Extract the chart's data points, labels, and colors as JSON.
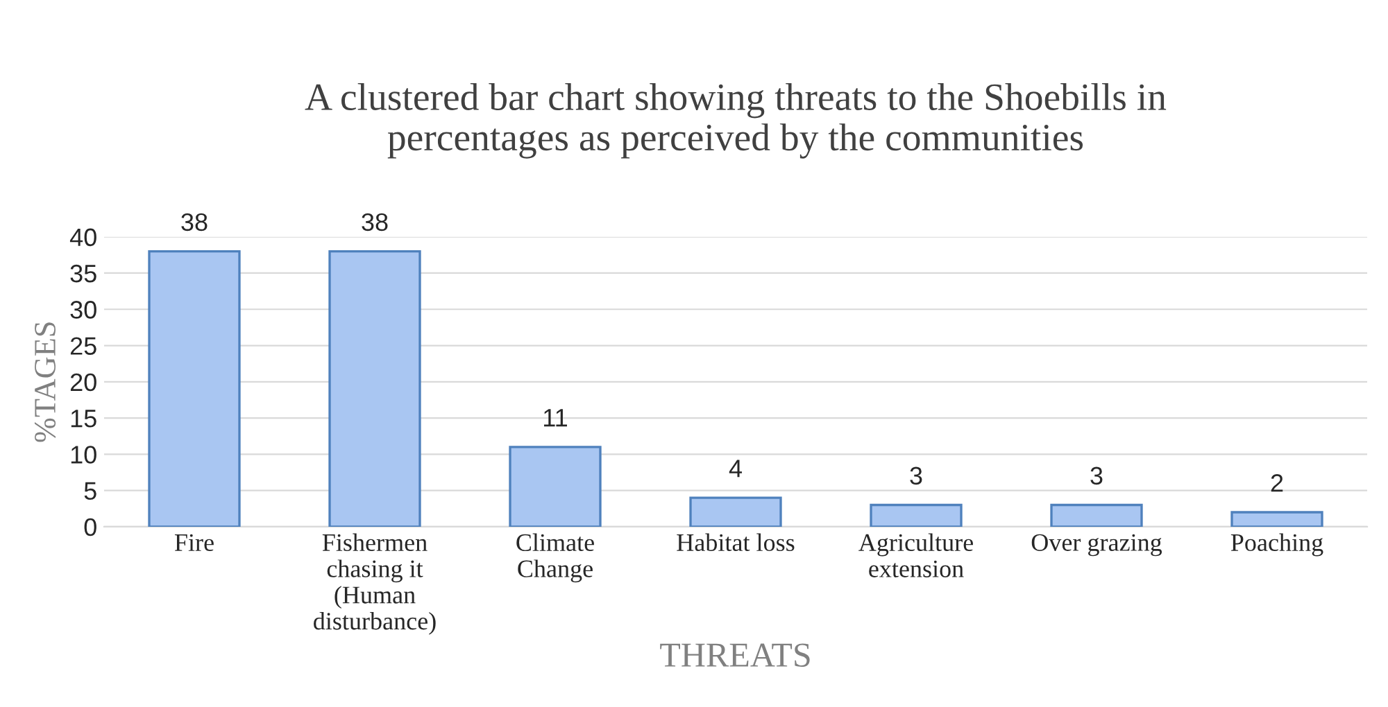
{
  "chart_data": {
    "type": "bar",
    "title": "A clustered bar chart showing threats to the Shoebills in\npercentages as perceived by the communities",
    "xlabel": "THREATS",
    "ylabel": "%TAGES",
    "categories": [
      "Fire",
      "Fishermen\nchasing it\n(Human\ndisturbance)",
      "Climate\nChange",
      "Habitat loss",
      "Agriculture\nextension",
      "Over grazing",
      "Poaching"
    ],
    "values": [
      38,
      38,
      11,
      4,
      3,
      3,
      2
    ],
    "color": "#a9c6f2",
    "ylim": [
      0,
      40
    ],
    "yticks": [
      0,
      5,
      10,
      15,
      20,
      25,
      30,
      35,
      40
    ],
    "grid": "y",
    "data_labels": true,
    "legend": false
  }
}
